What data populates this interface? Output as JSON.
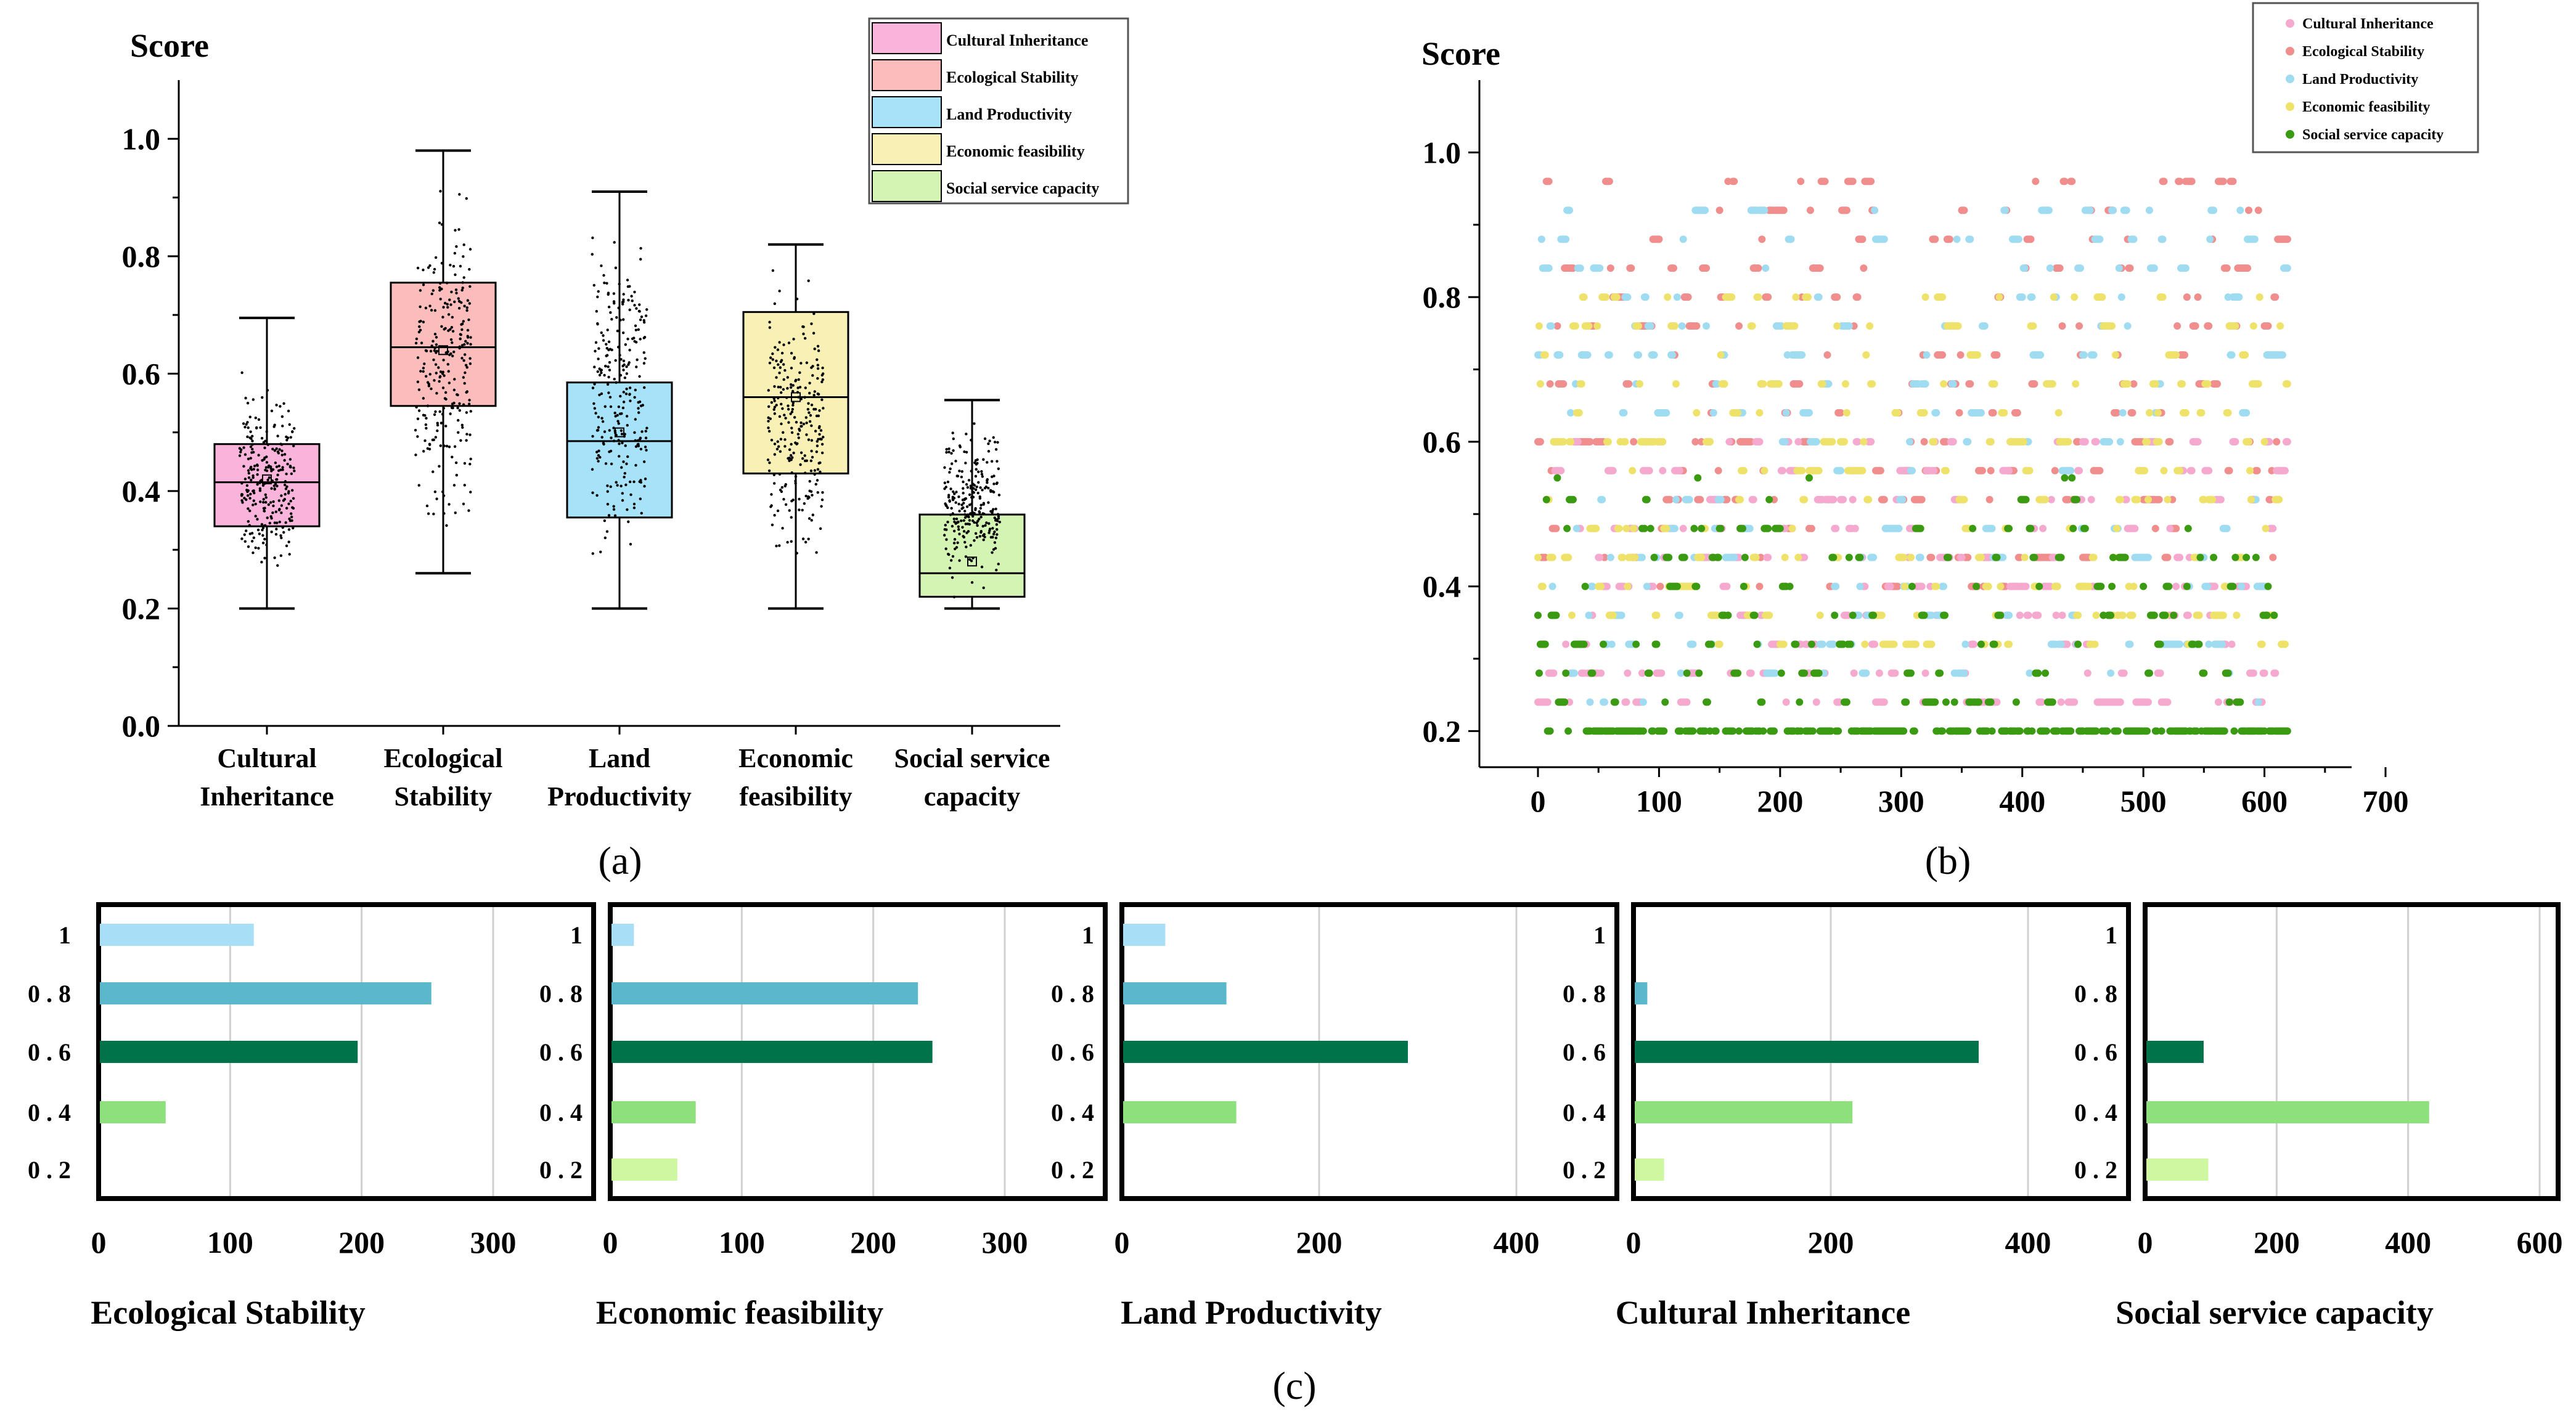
{
  "panel_labels": {
    "a": "(a)",
    "b": "(b)",
    "c": "(c)"
  },
  "colors": {
    "cultural": "#f9b4dc",
    "ecological": "#fbbcbc",
    "land": "#a6e2f8",
    "economic": "#f8f0b4",
    "social": "#d4f4b4",
    "scatter_cultural": "#f5a9cf",
    "scatter_ecological": "#f08e8e",
    "scatter_land": "#9fdcf2",
    "scatter_economic": "#eee26a",
    "scatter_social": "#3a9a12",
    "bar_1": "#a9def7",
    "bar_08": "#5bb7cb",
    "bar_06": "#00734a",
    "bar_04": "#8ee07c",
    "bar_02": "#cdf7a0"
  },
  "chart_data": [
    {
      "id": "a",
      "type": "box",
      "ylabel": "Score",
      "ylim": [
        0,
        1.1
      ],
      "yticks": [
        "0.0",
        "0.2",
        "0.4",
        "0.6",
        "0.8",
        "1.0"
      ],
      "yticks_values": [
        0,
        0.2,
        0.4,
        0.6,
        0.8,
        1.0
      ],
      "categories": [
        {
          "label_l1": "Cultural",
          "label_l2": "Inheritance",
          "legend": "Cultural Inheritance",
          "color_key": "cultural",
          "min": 0.2,
          "q1": 0.34,
          "median": 0.415,
          "q3": 0.48,
          "max": 0.695,
          "mean": 0.42,
          "spread_lo": 0.22,
          "spread_hi": 0.62
        },
        {
          "label_l1": "Ecological",
          "label_l2": "Stability",
          "legend": "Ecological Stability",
          "color_key": "ecological",
          "min": 0.26,
          "q1": 0.545,
          "median": 0.645,
          "q3": 0.755,
          "max": 0.98,
          "mean": 0.64,
          "spread_lo": 0.28,
          "spread_hi": 0.96
        },
        {
          "label_l1": "Land",
          "label_l2": "Productivity",
          "legend": "Land Productivity",
          "color_key": "land",
          "min": 0.2,
          "q1": 0.355,
          "median": 0.485,
          "q3": 0.585,
          "max": 0.91,
          "mean": 0.5,
          "spread_lo": 0.22,
          "spread_hi": 0.9
        },
        {
          "label_l1": "Economic",
          "label_l2": "feasibility",
          "legend": "Economic feasibility",
          "color_key": "economic",
          "min": 0.2,
          "q1": 0.43,
          "median": 0.56,
          "q3": 0.705,
          "max": 0.82,
          "mean": 0.56,
          "spread_lo": 0.22,
          "spread_hi": 0.8
        },
        {
          "label_l1": "Social service",
          "label_l2": "capacity",
          "legend": "Social service capacity",
          "color_key": "social",
          "min": 0.2,
          "q1": 0.22,
          "median": 0.26,
          "q3": 0.36,
          "max": 0.555,
          "mean": 0.28,
          "spread_lo": 0.21,
          "spread_hi": 0.54
        }
      ]
    },
    {
      "id": "b",
      "type": "scatter",
      "ylabel": "Score",
      "xlim": [
        0,
        700
      ],
      "ylim": [
        0.15,
        1.1
      ],
      "xticks": [
        "0",
        "100",
        "200",
        "300",
        "400",
        "500",
        "600",
        "700"
      ],
      "xticks_values": [
        0,
        100,
        200,
        300,
        400,
        500,
        600,
        700
      ],
      "yticks": [
        "0.2",
        "0.4",
        "0.6",
        "0.8",
        "1.0"
      ],
      "yticks_values": [
        0.2,
        0.4,
        0.6,
        0.8,
        1.0
      ],
      "n_points": 620,
      "series": [
        {
          "name": "Cultural Inheritance",
          "color_key": "scatter_cultural",
          "lo": 0.22,
          "hi": 0.62
        },
        {
          "name": "Ecological Stability",
          "color_key": "scatter_ecological",
          "lo": 0.4,
          "hi": 0.98
        },
        {
          "name": "Land Productivity",
          "color_key": "scatter_land",
          "lo": 0.25,
          "hi": 0.94
        },
        {
          "name": "Economic feasibility",
          "color_key": "scatter_economic",
          "lo": 0.3,
          "hi": 0.82
        },
        {
          "name": "Social service capacity",
          "color_key": "scatter_social",
          "lo": 0.2,
          "hi": 0.55
        }
      ]
    },
    {
      "id": "c",
      "type": "bar",
      "orientation": "horizontal",
      "categories": [
        "1",
        "0 . 8",
        "0 . 6",
        "0 . 4",
        "0 . 2"
      ],
      "bar_color_keys": [
        "bar_1",
        "bar_08",
        "bar_06",
        "bar_04",
        "bar_02"
      ],
      "panels": [
        {
          "title": "Ecological Stability",
          "xmax": 300,
          "xticks": [
            "0",
            "100",
            "200",
            "300"
          ],
          "xticks_values": [
            0,
            100,
            200,
            300
          ],
          "values": [
            118,
            253,
            197,
            51,
            0
          ]
        },
        {
          "title": "Economic feasibility",
          "xmax": 300,
          "xticks": [
            "0",
            "100",
            "200",
            "300"
          ],
          "xticks_values": [
            0,
            100,
            200,
            300
          ],
          "values": [
            18,
            234,
            245,
            65,
            51
          ]
        },
        {
          "title": "Land Productivity",
          "xmax": 400,
          "xticks": [
            "0",
            "200",
            "400"
          ],
          "xticks_values": [
            0,
            200,
            400
          ],
          "values": [
            44,
            106,
            290,
            116,
            0
          ]
        },
        {
          "title": "Cultural Inheritance",
          "xmax": 400,
          "xticks": [
            "0",
            "200",
            "400"
          ],
          "xticks_values": [
            0,
            200,
            400
          ],
          "values": [
            0,
            14,
            350,
            222,
            31
          ]
        },
        {
          "title": "Social service capacity",
          "xmax": 600,
          "xticks": [
            "0",
            "200",
            "400",
            "600"
          ],
          "xticks_values": [
            0,
            200,
            400,
            600
          ],
          "values": [
            0,
            0,
            89,
            432,
            96
          ]
        }
      ]
    }
  ]
}
